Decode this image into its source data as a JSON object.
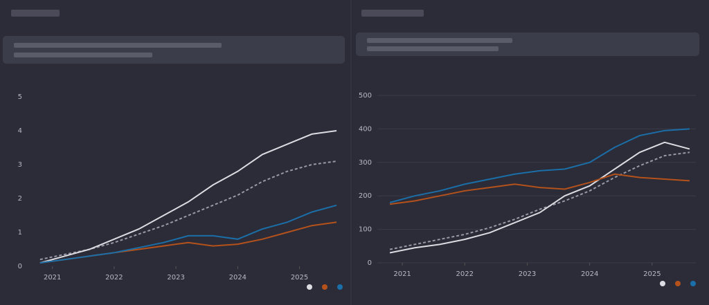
{
  "chart_data": [
    {
      "type": "line",
      "x": [
        2020.8,
        2021.2,
        2021.6,
        2022.0,
        2022.4,
        2022.8,
        2023.2,
        2023.6,
        2024.0,
        2024.4,
        2024.8,
        2025.2,
        2025.6
      ],
      "series": [
        {
          "color": "#9a9aa6",
          "dashed": true,
          "values": [
            0.2,
            0.35,
            0.5,
            0.7,
            0.95,
            1.2,
            1.5,
            1.8,
            2.1,
            2.5,
            2.8,
            3.0,
            3.1
          ]
        },
        {
          "color": "#dcdce2",
          "values": [
            0.1,
            0.3,
            0.5,
            0.8,
            1.1,
            1.5,
            1.9,
            2.4,
            2.8,
            3.3,
            3.6,
            3.9,
            4.0
          ]
        },
        {
          "color": "#b5521b",
          "values": [
            0.1,
            0.2,
            0.3,
            0.4,
            0.5,
            0.6,
            0.7,
            0.6,
            0.65,
            0.8,
            1.0,
            1.2,
            1.3
          ]
        },
        {
          "color": "#1b6fa8",
          "values": [
            0.1,
            0.2,
            0.3,
            0.4,
            0.55,
            0.7,
            0.9,
            0.9,
            0.8,
            1.1,
            1.3,
            1.6,
            1.8
          ]
        }
      ],
      "xlim": [
        2020.6,
        2025.7
      ],
      "xticks": [
        2021,
        2022,
        2023,
        2024,
        2025
      ],
      "ylim": [
        0,
        5
      ],
      "yticks": [
        0,
        1,
        2,
        3,
        4,
        5
      ],
      "grid": false
    },
    {
      "type": "line",
      "x": [
        2020.8,
        2021.2,
        2021.6,
        2022.0,
        2022.4,
        2022.8,
        2023.2,
        2023.6,
        2024.0,
        2024.4,
        2024.8,
        2025.2,
        2025.6
      ],
      "series": [
        {
          "color": "#9a9aa6",
          "dashed": true,
          "values": [
            40,
            55,
            70,
            85,
            105,
            130,
            160,
            185,
            215,
            255,
            290,
            320,
            330
          ]
        },
        {
          "color": "#dcdce2",
          "values": [
            30,
            45,
            55,
            70,
            90,
            120,
            150,
            200,
            230,
            280,
            330,
            360,
            340
          ]
        },
        {
          "color": "#b5521b",
          "values": [
            175,
            185,
            200,
            215,
            225,
            235,
            225,
            220,
            240,
            265,
            255,
            250,
            245
          ]
        },
        {
          "color": "#1b6fa8",
          "values": [
            180,
            200,
            215,
            235,
            250,
            265,
            275,
            280,
            300,
            345,
            380,
            395,
            400
          ]
        }
      ],
      "xlim": [
        2020.6,
        2025.7
      ],
      "xticks": [
        2021,
        2022,
        2023,
        2024,
        2025
      ],
      "ylim": [
        0,
        500
      ],
      "yticks": [
        0,
        100,
        200,
        300,
        400,
        500
      ],
      "grid": true
    }
  ]
}
